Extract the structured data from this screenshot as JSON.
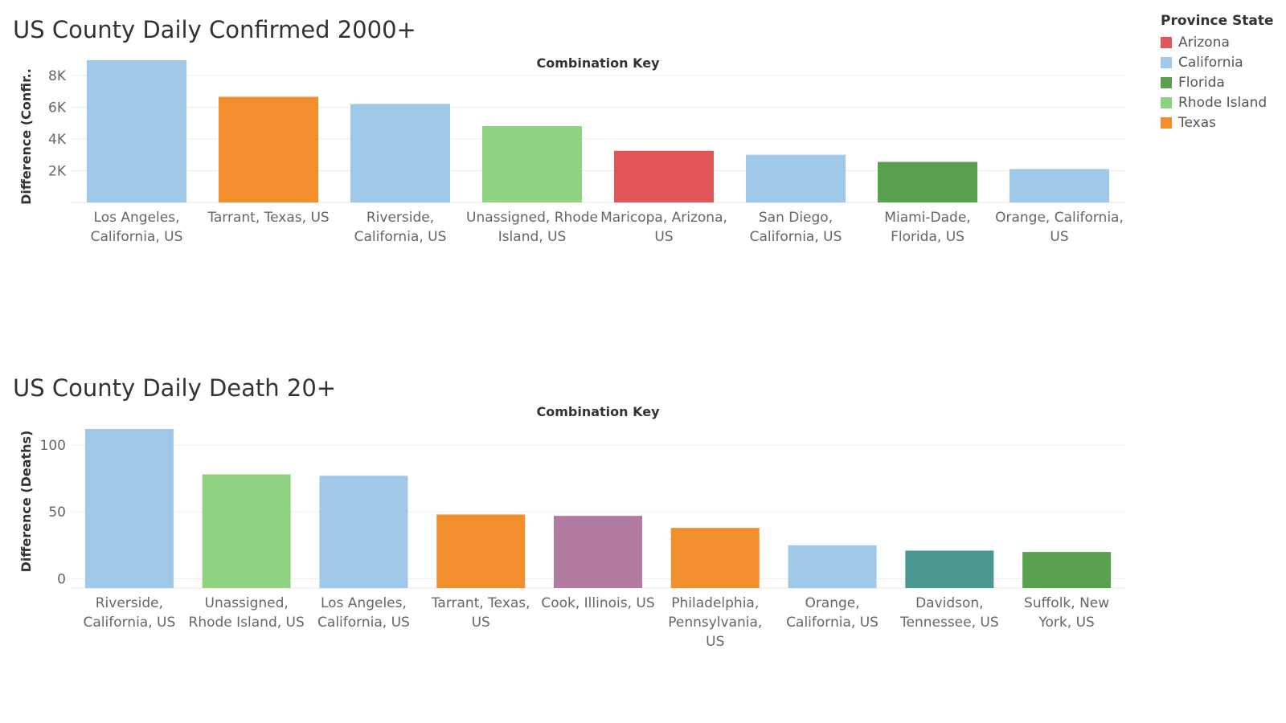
{
  "legend": {
    "title": "Province State",
    "items": [
      {
        "label": "Arizona",
        "color": "#e15759"
      },
      {
        "label": "California",
        "color": "#a0c8e8"
      },
      {
        "label": "Florida",
        "color": "#59a14f"
      },
      {
        "label": "Rhode Island",
        "color": "#8fd27f"
      },
      {
        "label": "Texas",
        "color": "#f28e2b"
      }
    ]
  },
  "chart_data": [
    {
      "type": "bar",
      "title": "US County Daily Confirmed 2000+",
      "xlabel": "Combination Key",
      "ylabel": "Difference (Confir..",
      "ylim": [
        0,
        9000
      ],
      "ytick_values": [
        2000,
        4000,
        6000,
        8000
      ],
      "ytick_labels": [
        "2K",
        "4K",
        "6K",
        "8K"
      ],
      "grid": true,
      "legend_placement": "top-right",
      "categories": [
        [
          "Los Angeles,",
          "California, US"
        ],
        [
          "Tarrant, Texas, US"
        ],
        [
          "Riverside,",
          "California, US"
        ],
        [
          "Unassigned, Rhode",
          "Island, US"
        ],
        [
          "Maricopa, Arizona,",
          "US"
        ],
        [
          "San Diego,",
          "California, US"
        ],
        [
          "Miami-Dade,",
          "Florida, US"
        ],
        [
          "Orange, California,",
          "US"
        ]
      ],
      "values": [
        8950,
        6650,
        6200,
        4800,
        3250,
        3000,
        2550,
        2100
      ],
      "colors": [
        "#a0c8e8",
        "#f28e2b",
        "#a0c8e8",
        "#8fd27f",
        "#e15759",
        "#a0c8e8",
        "#59a14f",
        "#a0c8e8"
      ]
    },
    {
      "type": "bar",
      "title": "US County Daily Death 20+",
      "xlabel": "Combination Key",
      "ylabel": "Difference (Deaths)",
      "ylim": [
        -7,
        118
      ],
      "ytick_values": [
        0,
        50,
        100
      ],
      "ytick_labels": [
        "0",
        "50",
        "100"
      ],
      "grid": true,
      "categories": [
        [
          "Riverside,",
          "California, US"
        ],
        [
          "Unassigned,",
          "Rhode Island, US"
        ],
        [
          "Los Angeles,",
          "California, US"
        ],
        [
          "Tarrant, Texas,",
          "US"
        ],
        [
          "Cook, Illinois, US"
        ],
        [
          "Philadelphia,",
          "Pennsylvania,",
          "US"
        ],
        [
          "Orange,",
          "California, US"
        ],
        [
          "Davidson,",
          "Tennessee, US"
        ],
        [
          "Suffolk, New",
          "York, US"
        ]
      ],
      "values": [
        112,
        78,
        77,
        48,
        47,
        38,
        25,
        21,
        20
      ],
      "colors": [
        "#a0c8e8",
        "#8fd27f",
        "#a0c8e8",
        "#f28e2b",
        "#b07aa1",
        "#f28e2b",
        "#a0c8e8",
        "#4a9690",
        "#59a14f"
      ]
    }
  ]
}
